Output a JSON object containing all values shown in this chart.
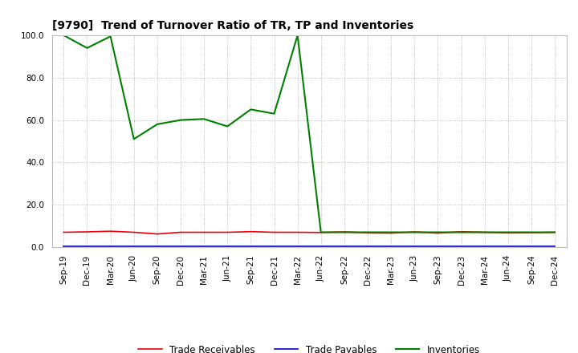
{
  "title": "[9790]  Trend of Turnover Ratio of TR, TP and Inventories",
  "x_labels": [
    "Sep-19",
    "Dec-19",
    "Mar-20",
    "Jun-20",
    "Sep-20",
    "Dec-20",
    "Mar-21",
    "Jun-21",
    "Sep-21",
    "Dec-21",
    "Mar-22",
    "Jun-22",
    "Sep-22",
    "Dec-22",
    "Mar-23",
    "Jun-23",
    "Sep-23",
    "Dec-23",
    "Mar-24",
    "Jun-24",
    "Sep-24",
    "Dec-24"
  ],
  "trade_receivables": [
    7.0,
    7.2,
    7.5,
    7.0,
    6.2,
    7.0,
    7.0,
    7.0,
    7.3,
    7.0,
    7.0,
    6.9,
    7.2,
    6.7,
    6.6,
    7.2,
    6.6,
    7.3,
    7.0,
    6.7,
    6.8,
    7.0
  ],
  "trade_payables": [
    0.3,
    0.3,
    0.3,
    0.3,
    0.3,
    0.3,
    0.3,
    0.3,
    0.3,
    0.3,
    0.3,
    0.3,
    0.3,
    0.3,
    0.3,
    0.3,
    0.3,
    0.3,
    0.3,
    0.3,
    0.3,
    0.3
  ],
  "inventories": [
    100.0,
    94.0,
    99.5,
    51.0,
    58.0,
    60.0,
    60.5,
    57.0,
    65.0,
    63.0,
    100.0,
    7.0,
    7.0,
    7.0,
    7.0,
    7.0,
    7.0,
    7.0,
    7.0,
    7.0,
    7.0,
    7.0
  ],
  "tr_color": "#e8000d",
  "tp_color": "#0000cd",
  "inv_color": "#008000",
  "ylim": [
    0.0,
    100.0
  ],
  "yticks": [
    0.0,
    20.0,
    40.0,
    60.0,
    80.0,
    100.0
  ],
  "legend_labels": [
    "Trade Receivables",
    "Trade Payables",
    "Inventories"
  ],
  "bg_color": "#ffffff",
  "grid_color": "#aaaaaa",
  "title_fontsize": 10,
  "axis_fontsize": 7.5,
  "legend_fontsize": 8.5
}
